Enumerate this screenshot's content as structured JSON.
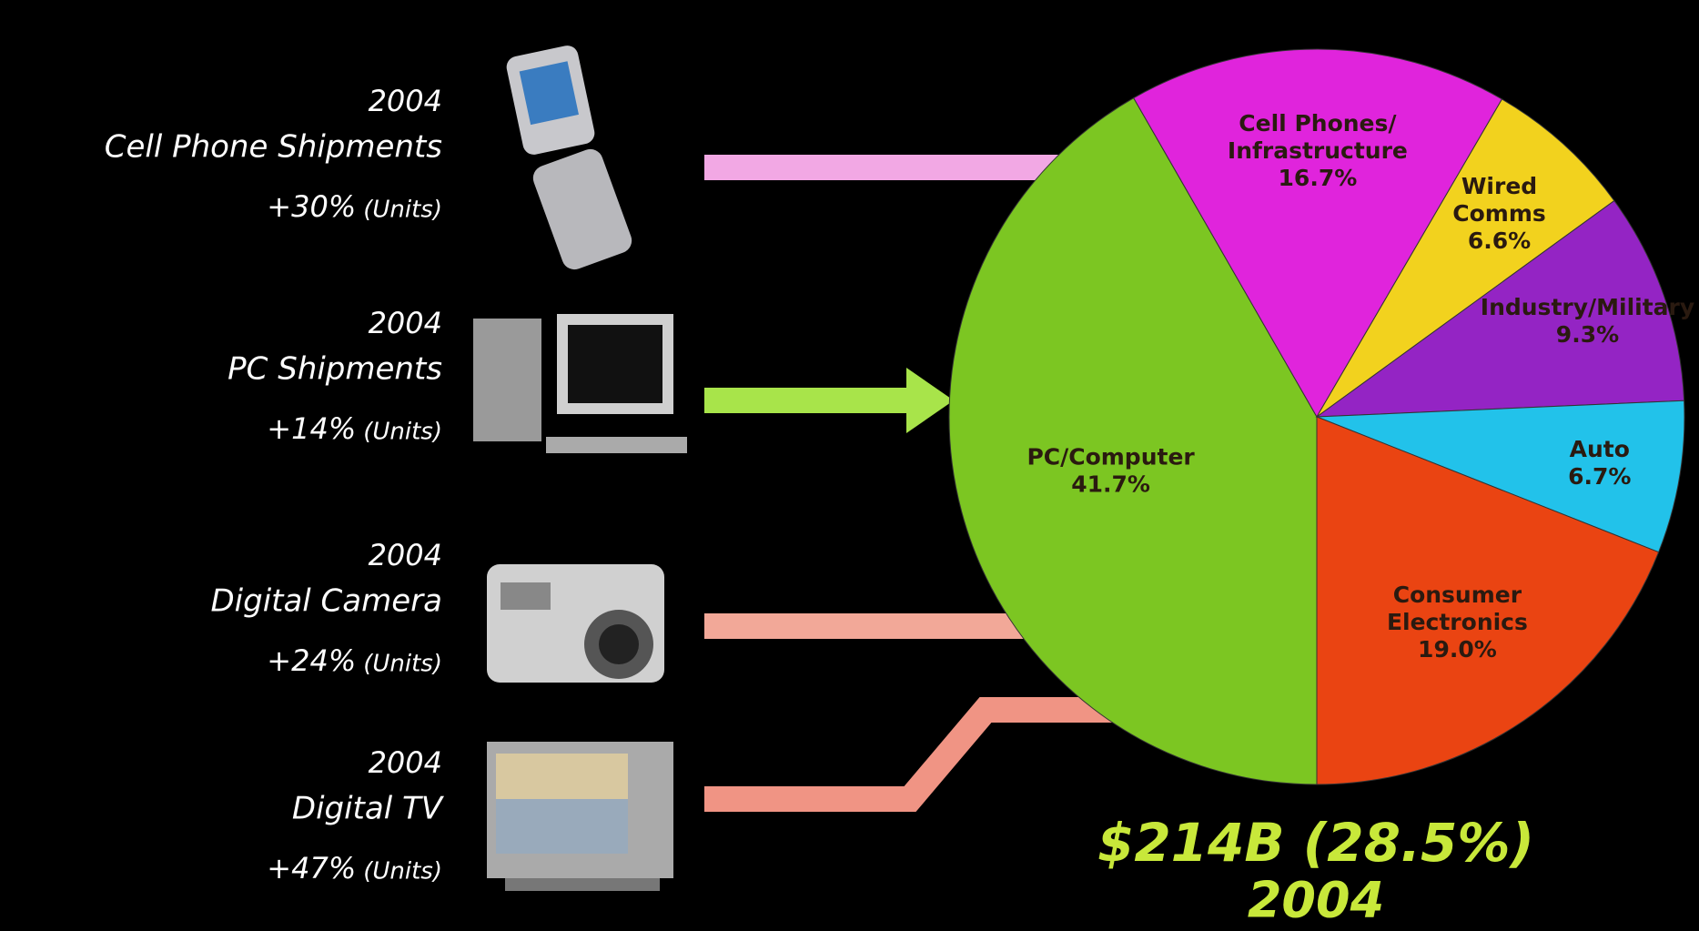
{
  "chart_data": {
    "type": "pie",
    "categories": [
      [
        "PC/Computer"
      ],
      [
        "Cell Phones/",
        "Infrastructure"
      ],
      [
        "Wired",
        "Comms"
      ],
      [
        "Industry/Military"
      ],
      [
        "Auto"
      ],
      [
        "Consumer",
        "Electronics"
      ]
    ],
    "values": [
      41.7,
      16.7,
      6.6,
      9.3,
      6.7,
      19.0
    ],
    "value_labels": [
      "41.7%",
      "16.7%",
      "6.6%",
      "9.3%",
      "6.7%",
      "19.0%"
    ],
    "colors": [
      "#7cc622",
      "#e024dc",
      "#f2d21e",
      "#9424c4",
      "#22c2ea",
      "#ea4412"
    ],
    "total_label": [
      "$214B (28.5%)",
      "2004"
    ],
    "annotations": [
      {
        "year": "2004",
        "name": "Cell Phone Shipments",
        "growth": "+30%",
        "unit": "(Units)"
      },
      {
        "year": "2004",
        "name": "PC Shipments",
        "growth": "+14%",
        "unit": "(Units)"
      },
      {
        "year": "2004",
        "name": "Digital Camera",
        "growth": "+24%",
        "unit": "(Units)"
      },
      {
        "year": "2004",
        "name": "Digital TV",
        "growth": "+47%",
        "unit": "(Units)"
      }
    ]
  }
}
